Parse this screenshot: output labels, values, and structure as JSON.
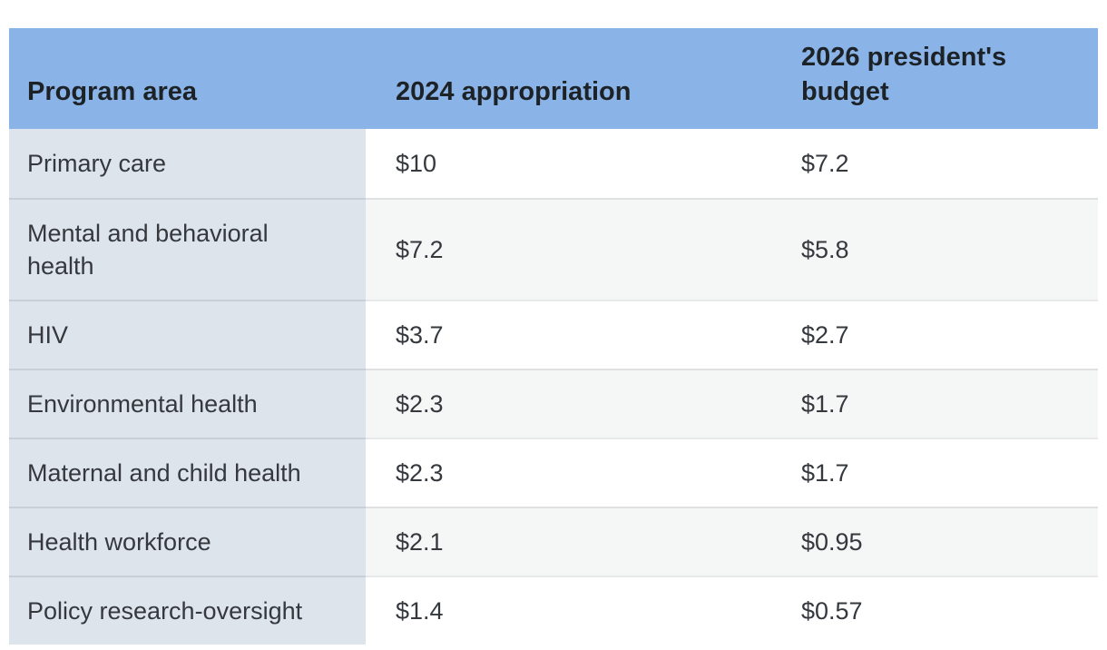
{
  "table": {
    "columns": [
      {
        "key": "area",
        "label": "Program area"
      },
      {
        "key": "approp_2024",
        "label": "2024 appropriation"
      },
      {
        "key": "budget_2026",
        "label": "2026 president's budget"
      }
    ],
    "rows": [
      {
        "area": "Primary care",
        "approp_2024": "$10",
        "budget_2026": "$7.2"
      },
      {
        "area": "Mental and behavioral health",
        "approp_2024": "$7.2",
        "budget_2026": "$5.8"
      },
      {
        "area": "HIV",
        "approp_2024": "$3.7",
        "budget_2026": "$2.7"
      },
      {
        "area": "Environmental health",
        "approp_2024": "$2.3",
        "budget_2026": "$1.7"
      },
      {
        "area": "Maternal and child health",
        "approp_2024": "$2.3",
        "budget_2026": "$1.7"
      },
      {
        "area": "Health workforce",
        "approp_2024": "$2.1",
        "budget_2026": "$0.95"
      },
      {
        "area": "Policy research-oversight",
        "approp_2024": "$1.4",
        "budget_2026": "$0.57"
      }
    ],
    "colors": {
      "header_bg": "#8ab4e7",
      "label_col_bg": "#dee4ec",
      "row_bg": "#ffffff",
      "row_alt_bg": "#f5f6f6",
      "divider": "rgba(20,30,40,0.10)",
      "header_text": "#1d2227",
      "body_text": "#35393e"
    }
  },
  "chart_data": {
    "type": "table",
    "columns": [
      "Program area",
      "2024 appropriation",
      "2026 president's budget"
    ],
    "categories": [
      "Primary care",
      "Mental and behavioral health",
      "HIV",
      "Environmental health",
      "Maternal and child health",
      "Health workforce",
      "Policy research-oversight"
    ],
    "series": [
      {
        "name": "2024 appropriation",
        "values": [
          10,
          7.2,
          3.7,
          2.3,
          2.3,
          2.1,
          1.4
        ]
      },
      {
        "name": "2026 president's budget",
        "values": [
          7.2,
          5.8,
          2.7,
          1.7,
          1.7,
          0.95,
          0.57
        ]
      }
    ],
    "rows": [
      [
        "Primary care",
        "$10",
        "$7.2"
      ],
      [
        "Mental and behavioral health",
        "$7.2",
        "$5.8"
      ],
      [
        "HIV",
        "$3.7",
        "$2.7"
      ],
      [
        "Environmental health",
        "$2.3",
        "$1.7"
      ],
      [
        "Maternal and child health",
        "$2.3",
        "$1.7"
      ],
      [
        "Health workforce",
        "$2.1",
        "$0.95"
      ],
      [
        "Policy research-oversight",
        "$1.4",
        "$0.57"
      ]
    ],
    "layout_hints": {
      "grid": "row-dividers",
      "zebra_striping": true,
      "header_position": "top"
    }
  }
}
